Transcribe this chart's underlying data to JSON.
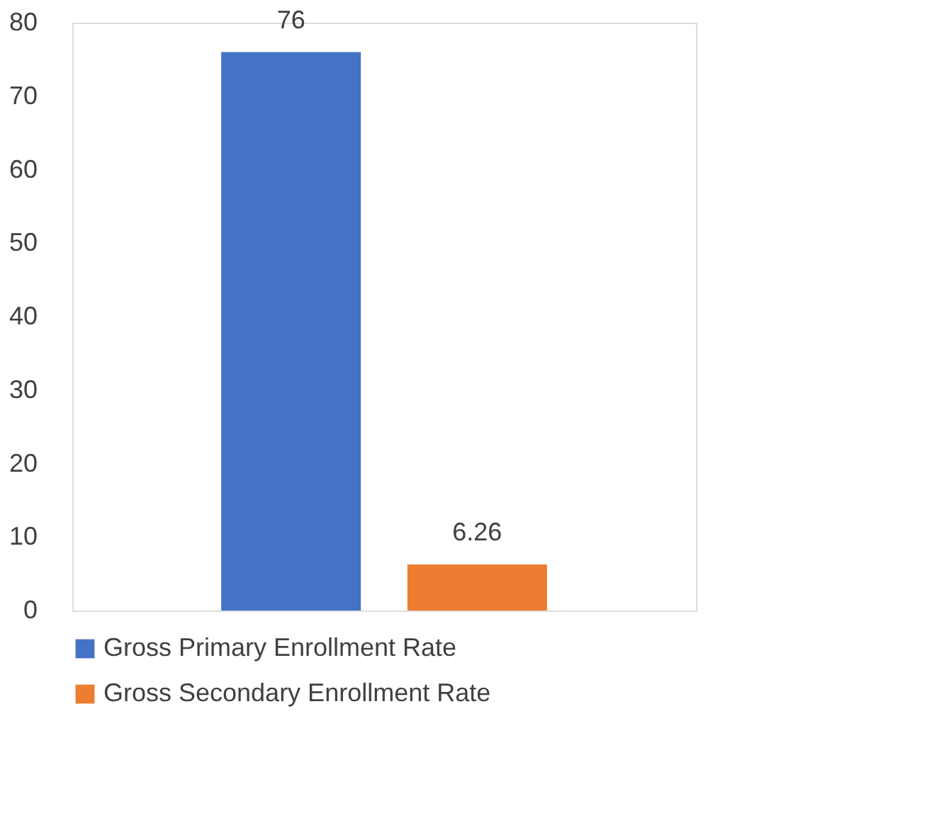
{
  "chart_data": {
    "type": "bar",
    "categories": [
      null
    ],
    "series": [
      {
        "name": "Gross Primary Enrollment Rate",
        "color": "#4472c4",
        "values": [
          76
        ]
      },
      {
        "name": "Gross Secondary Enrollment Rate",
        "color": "#ed7d31",
        "values": [
          6.26
        ]
      }
    ],
    "ylim": [
      0,
      80
    ],
    "yticks": [
      0,
      10,
      20,
      30,
      40,
      50,
      60,
      70,
      80
    ],
    "grid": false,
    "legend": "bottom",
    "data_labels": true
  }
}
